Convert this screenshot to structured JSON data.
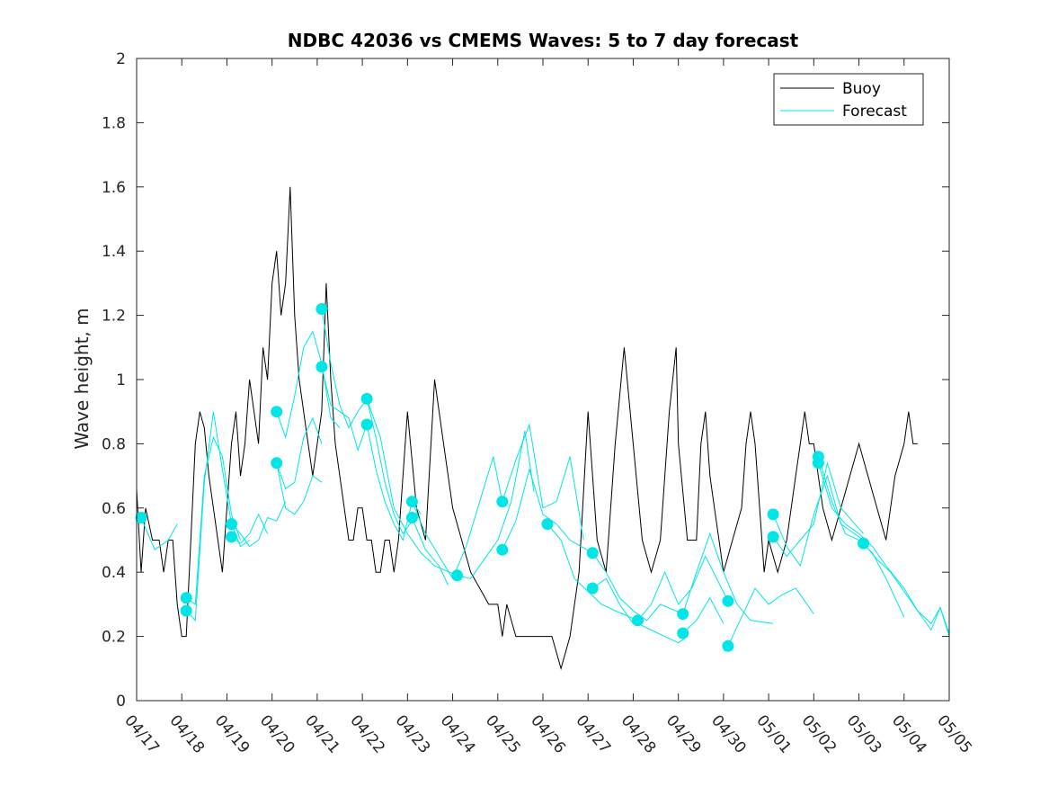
{
  "chart_data": {
    "type": "line",
    "title": "NDBC 42036 vs CMEMS Waves: 5 to 7 day forecast",
    "xlabel": "",
    "ylabel": "Wave height, m",
    "x_tick_labels": [
      "04/17",
      "04/18",
      "04/19",
      "04/20",
      "04/21",
      "04/22",
      "04/23",
      "04/24",
      "04/25",
      "04/26",
      "04/27",
      "04/28",
      "04/29",
      "04/30",
      "05/01",
      "05/02",
      "05/03",
      "05/04",
      "05/05"
    ],
    "xlim_days": [
      0,
      18
    ],
    "ylim": [
      0,
      2
    ],
    "y_ticks": [
      "0",
      "0.2",
      "0.4",
      "0.6",
      "0.8",
      "1",
      "1.2",
      "1.4",
      "1.6",
      "1.8",
      "2"
    ],
    "legend_position": "top-right",
    "colors": {
      "buoy": "#000000",
      "forecast": "#00e6e6"
    },
    "series": [
      {
        "name": "Buoy",
        "style": "line",
        "x": [
          0,
          0.1,
          0.2,
          0.35,
          0.5,
          0.6,
          0.7,
          0.8,
          0.9,
          1.0,
          1.1,
          1.2,
          1.3,
          1.4,
          1.5,
          1.6,
          1.7,
          1.8,
          1.9,
          2.0,
          2.1,
          2.2,
          2.3,
          2.4,
          2.5,
          2.6,
          2.7,
          2.8,
          2.9,
          3.0,
          3.1,
          3.2,
          3.3,
          3.4,
          3.5,
          3.6,
          3.7,
          3.8,
          3.9,
          4.0,
          4.1,
          4.2,
          4.3,
          4.4,
          4.5,
          4.6,
          4.7,
          4.8,
          4.9,
          5.0,
          5.1,
          5.2,
          5.3,
          5.4,
          5.5,
          5.6,
          5.7,
          5.8,
          5.9,
          6.0,
          6.2,
          6.4,
          6.6,
          6.8,
          7.0,
          7.2,
          7.4,
          7.6,
          7.8,
          7.9,
          8.0,
          8.1,
          8.2,
          8.3,
          8.4,
          8.5,
          8.6,
          8.7,
          8.8,
          8.9,
          9.0,
          9.2,
          9.4,
          9.6,
          9.8,
          10.0,
          10.2,
          10.4,
          10.6,
          10.8,
          11.0,
          11.2,
          11.4,
          11.6,
          11.8,
          11.95,
          12.0,
          12.2,
          12.4,
          12.5,
          12.6,
          12.7,
          12.8,
          12.9,
          13.0,
          13.2,
          13.4,
          13.5,
          13.6,
          13.7,
          13.8,
          13.9,
          14.0,
          14.2,
          14.4,
          14.5,
          14.6,
          14.7,
          14.8,
          14.9,
          15.0,
          15.2,
          15.4,
          15.6,
          15.8,
          16.0,
          16.2,
          16.4,
          16.6,
          16.8,
          17.0,
          17.1,
          17.2,
          17.3
        ],
        "y": [
          0.66,
          0.4,
          0.6,
          0.5,
          0.5,
          0.4,
          0.5,
          0.5,
          0.3,
          0.2,
          0.2,
          0.5,
          0.8,
          0.9,
          0.85,
          0.7,
          0.6,
          0.5,
          0.4,
          0.6,
          0.8,
          0.9,
          0.7,
          0.8,
          1.0,
          0.9,
          0.8,
          1.1,
          1.0,
          1.3,
          1.4,
          1.2,
          1.3,
          1.6,
          1.2,
          1.0,
          0.9,
          0.8,
          0.7,
          0.8,
          0.9,
          1.3,
          1.0,
          0.8,
          0.7,
          0.6,
          0.5,
          0.5,
          0.6,
          0.6,
          0.5,
          0.5,
          0.4,
          0.4,
          0.5,
          0.5,
          0.4,
          0.5,
          0.7,
          0.9,
          0.6,
          0.5,
          1.0,
          0.8,
          0.6,
          0.5,
          0.4,
          0.35,
          0.3,
          0.3,
          0.3,
          0.2,
          0.3,
          0.25,
          0.2,
          0.2,
          0.2,
          0.2,
          0.2,
          0.2,
          0.2,
          0.2,
          0.1,
          0.2,
          0.4,
          0.9,
          0.5,
          0.4,
          0.8,
          1.1,
          0.8,
          0.5,
          0.4,
          0.5,
          0.9,
          1.1,
          0.8,
          0.5,
          0.5,
          0.8,
          0.9,
          0.7,
          0.6,
          0.5,
          0.4,
          0.5,
          0.6,
          0.8,
          0.9,
          0.8,
          0.6,
          0.4,
          0.5,
          0.4,
          0.5,
          0.6,
          0.7,
          0.8,
          0.9,
          0.8,
          0.8,
          0.6,
          0.5,
          0.6,
          0.7,
          0.8,
          0.7,
          0.6,
          0.5,
          0.7,
          0.8,
          0.9,
          0.8,
          0.8
        ]
      },
      {
        "name": "Forecast",
        "style": "lines",
        "lines": [
          {
            "x": [
              0.1,
              0.4,
              0.7,
              0.9
            ],
            "y": [
              0.57,
              0.47,
              0.5,
              0.55
            ]
          },
          {
            "x": [
              1.1,
              1.3,
              1.5,
              1.7,
              1.9,
              2.1,
              2.3
            ],
            "y": [
              0.32,
              0.3,
              0.7,
              0.82,
              0.76,
              0.58,
              0.5
            ]
          },
          {
            "x": [
              1.1,
              1.3,
              1.5,
              1.7,
              1.9,
              2.1,
              2.3,
              2.5
            ],
            "y": [
              0.28,
              0.25,
              0.68,
              0.9,
              0.72,
              0.55,
              0.48,
              0.5
            ]
          },
          {
            "x": [
              2.1,
              2.3,
              2.5,
              2.7,
              2.9,
              3.1,
              3.3
            ],
            "y": [
              0.55,
              0.52,
              0.48,
              0.5,
              0.57,
              0.56,
              0.62
            ]
          },
          {
            "x": [
              2.1,
              2.3,
              2.5,
              2.7,
              2.9
            ],
            "y": [
              0.51,
              0.49,
              0.52,
              0.58,
              0.52
            ]
          },
          {
            "x": [
              3.1,
              3.3,
              3.5,
              3.7,
              3.9,
              4.1,
              4.3,
              4.5
            ],
            "y": [
              0.9,
              0.82,
              0.95,
              1.1,
              1.15,
              1.05,
              0.88,
              0.85
            ]
          },
          {
            "x": [
              3.1,
              3.3,
              3.5,
              3.7,
              3.9,
              4.1
            ],
            "y": [
              0.74,
              0.66,
              0.68,
              0.82,
              0.88,
              0.8
            ]
          },
          {
            "x": [
              3.1,
              3.3,
              3.5,
              3.7,
              3.9,
              4.1
            ],
            "y": [
              0.74,
              0.6,
              0.58,
              0.62,
              0.7,
              0.68
            ]
          },
          {
            "x": [
              4.1,
              4.3,
              4.5,
              4.7,
              4.9,
              5.1,
              5.3,
              5.5,
              5.7,
              5.9,
              6.1
            ],
            "y": [
              1.22,
              1.05,
              0.92,
              0.85,
              0.9,
              0.94,
              0.82,
              0.68,
              0.58,
              0.52,
              0.56
            ]
          },
          {
            "x": [
              4.1,
              4.3,
              4.5,
              4.7,
              4.9,
              5.1
            ],
            "y": [
              1.04,
              0.92,
              0.9,
              0.88,
              0.78,
              0.86
            ]
          },
          {
            "x": [
              5.1,
              5.3,
              5.5,
              5.7,
              5.9,
              6.1,
              6.3
            ],
            "y": [
              0.86,
              0.72,
              0.62,
              0.55,
              0.5,
              0.62,
              0.58
            ]
          },
          {
            "x": [
              5.1,
              5.4,
              5.7,
              6.0,
              6.3,
              6.6,
              7.1
            ],
            "y": [
              0.94,
              0.82,
              0.6,
              0.52,
              0.46,
              0.42,
              0.39
            ]
          },
          {
            "x": [
              6.1,
              6.4,
              6.7,
              7.0,
              7.3,
              7.6,
              7.9,
              8.1
            ],
            "y": [
              0.62,
              0.52,
              0.45,
              0.38,
              0.48,
              0.62,
              0.76,
              0.62
            ]
          },
          {
            "x": [
              6.1,
              6.4,
              6.7,
              6.9
            ],
            "y": [
              0.57,
              0.47,
              0.42,
              0.36
            ]
          },
          {
            "x": [
              7.1,
              7.4,
              7.7,
              8.0,
              8.3,
              8.6,
              8.8
            ],
            "y": [
              0.39,
              0.38,
              0.44,
              0.5,
              0.62,
              0.84,
              0.65
            ]
          },
          {
            "x": [
              8.1,
              8.4,
              8.7,
              9.0,
              9.3,
              9.6,
              9.9
            ],
            "y": [
              0.62,
              0.75,
              0.86,
              0.6,
              0.62,
              0.76,
              0.5
            ]
          },
          {
            "x": [
              8.1,
              8.4,
              8.7,
              9.0,
              9.3,
              9.6,
              10.1
            ],
            "y": [
              0.47,
              0.56,
              0.72,
              0.58,
              0.55,
              0.5,
              0.46
            ]
          },
          {
            "x": [
              9.1,
              9.4,
              9.7,
              10.0,
              10.3,
              10.6,
              11.1
            ],
            "y": [
              0.55,
              0.5,
              0.38,
              0.34,
              0.3,
              0.28,
              0.25
            ]
          },
          {
            "x": [
              10.1,
              10.4,
              10.7,
              11.0,
              11.3,
              11.6,
              12.1
            ],
            "y": [
              0.46,
              0.4,
              0.32,
              0.28,
              0.25,
              0.3,
              0.27
            ]
          },
          {
            "x": [
              10.1,
              10.4,
              10.7,
              11.0
            ],
            "y": [
              0.35,
              0.38,
              0.3,
              0.24
            ]
          },
          {
            "x": [
              11.1,
              11.4,
              11.7,
              12.0,
              12.3,
              12.6,
              13.1
            ],
            "y": [
              0.25,
              0.3,
              0.4,
              0.3,
              0.35,
              0.45,
              0.31
            ]
          },
          {
            "x": [
              11.1,
              11.4,
              11.7,
              12.0,
              12.2
            ],
            "y": [
              0.24,
              0.22,
              0.2,
              0.18,
              0.2
            ]
          },
          {
            "x": [
              12.1,
              12.4,
              12.7,
              13.0,
              13.3,
              13.6,
              14.1
            ],
            "y": [
              0.27,
              0.4,
              0.52,
              0.4,
              0.3,
              0.25,
              0.24
            ]
          },
          {
            "x": [
              12.1,
              12.4,
              12.7,
              13.0
            ],
            "y": [
              0.21,
              0.25,
              0.32,
              0.24
            ]
          },
          {
            "x": [
              13.1,
              13.4,
              13.7,
              14.0,
              14.3,
              14.6,
              15.0
            ],
            "y": [
              0.17,
              0.26,
              0.35,
              0.3,
              0.33,
              0.35,
              0.27
            ]
          },
          {
            "x": [
              14.1,
              14.4,
              14.7,
              15.0,
              15.3,
              15.6,
              16.1
            ],
            "y": [
              0.58,
              0.48,
              0.42,
              0.58,
              0.7,
              0.55,
              0.5
            ]
          },
          {
            "x": [
              14.1,
              14.4,
              14.7,
              15.0,
              15.3,
              15.6,
              16.1
            ],
            "y": [
              0.51,
              0.45,
              0.5,
              0.55,
              0.74,
              0.6,
              0.52
            ]
          },
          {
            "x": [
              15.1,
              15.4,
              15.7,
              16.0,
              16.3,
              16.6,
              17.0
            ],
            "y": [
              0.76,
              0.62,
              0.52,
              0.5,
              0.46,
              0.38,
              0.26
            ]
          },
          {
            "x": [
              15.1,
              15.4,
              15.7,
              16.0,
              16.3,
              16.6,
              17.0,
              17.3,
              17.6,
              17.8,
              18.0
            ],
            "y": [
              0.74,
              0.6,
              0.55,
              0.52,
              0.48,
              0.42,
              0.35,
              0.28,
              0.22,
              0.29,
              0.2
            ]
          },
          {
            "x": [
              16.1,
              16.4,
              16.7,
              17.0,
              17.3,
              17.6,
              17.8,
              18.0
            ],
            "y": [
              0.49,
              0.44,
              0.4,
              0.34,
              0.28,
              0.24,
              0.29,
              0.21
            ]
          }
        ],
        "markers": {
          "x": [
            0.1,
            1.1,
            1.1,
            2.1,
            2.1,
            3.1,
            3.1,
            4.1,
            4.1,
            5.1,
            5.1,
            6.1,
            6.1,
            7.1,
            8.1,
            8.1,
            9.1,
            10.1,
            10.1,
            11.1,
            12.1,
            12.1,
            13.1,
            13.1,
            14.1,
            14.1,
            15.1,
            15.1,
            16.1
          ],
          "y": [
            0.57,
            0.32,
            0.28,
            0.55,
            0.51,
            0.9,
            0.74,
            1.22,
            1.04,
            0.94,
            0.86,
            0.62,
            0.57,
            0.39,
            0.62,
            0.47,
            0.55,
            0.46,
            0.35,
            0.25,
            0.27,
            0.21,
            0.31,
            0.17,
            0.58,
            0.51,
            0.76,
            0.74,
            0.49
          ]
        }
      }
    ]
  }
}
